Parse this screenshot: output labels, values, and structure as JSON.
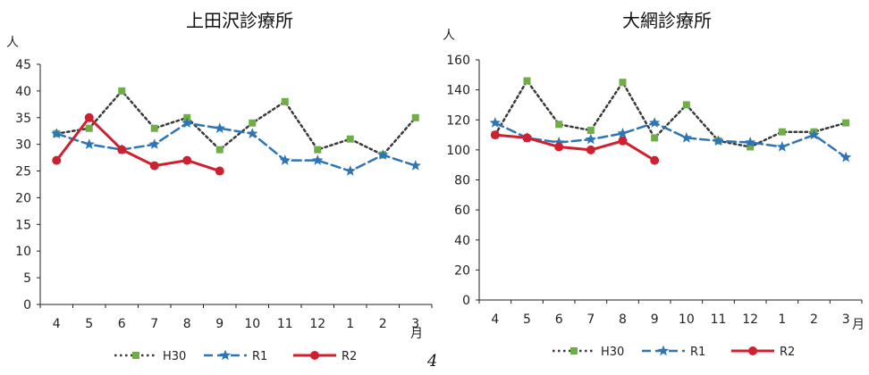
{
  "page_number": "4",
  "chart_data": [
    {
      "type": "line",
      "title": "上田沢診療所",
      "ylabel": "人",
      "xlabel": "月",
      "categories": [
        "4",
        "5",
        "6",
        "7",
        "8",
        "9",
        "10",
        "11",
        "12",
        "1",
        "2",
        "3"
      ],
      "ylim": [
        0,
        45
      ],
      "yticks": [
        0,
        5,
        10,
        15,
        20,
        25,
        30,
        35,
        40,
        45
      ],
      "grid": false,
      "legend": "bottom",
      "series": [
        {
          "name": "H30",
          "style": "dotted",
          "color": "#3a3a3a",
          "marker": "square",
          "marker_color": "#70ad47",
          "values": [
            32,
            33,
            40,
            33,
            35,
            29,
            34,
            38,
            29,
            31,
            28,
            35
          ]
        },
        {
          "name": "R1",
          "style": "dashed",
          "color": "#2e75b6",
          "marker": "star",
          "marker_color": "#2e75b6",
          "values": [
            32,
            30,
            29,
            30,
            34,
            33,
            32,
            27,
            27,
            25,
            28,
            26
          ]
        },
        {
          "name": "R2",
          "style": "solid",
          "color": "#d02030",
          "marker": "circle",
          "marker_color": "#d02030",
          "values": [
            27,
            35,
            29,
            26,
            27,
            25,
            null,
            null,
            null,
            null,
            null,
            null
          ]
        }
      ]
    },
    {
      "type": "line",
      "title": "大網診療所",
      "ylabel": "人",
      "xlabel": "月",
      "categories": [
        "4",
        "5",
        "6",
        "7",
        "8",
        "9",
        "10",
        "11",
        "12",
        "1",
        "2",
        "3"
      ],
      "ylim": [
        0,
        160
      ],
      "yticks": [
        0,
        20,
        40,
        60,
        80,
        100,
        120,
        140,
        160
      ],
      "grid": false,
      "legend": "bottom",
      "series": [
        {
          "name": "H30",
          "style": "dotted",
          "color": "#3a3a3a",
          "marker": "square",
          "marker_color": "#70ad47",
          "values": [
            110,
            146,
            117,
            113,
            145,
            108,
            130,
            106,
            102,
            112,
            112,
            118
          ]
        },
        {
          "name": "R1",
          "style": "dashed",
          "color": "#2e75b6",
          "marker": "star",
          "marker_color": "#2e75b6",
          "values": [
            118,
            108,
            105,
            107,
            111,
            118,
            108,
            106,
            105,
            102,
            110,
            95
          ]
        },
        {
          "name": "R2",
          "style": "solid",
          "color": "#d02030",
          "marker": "circle",
          "marker_color": "#d02030",
          "values": [
            110,
            108,
            102,
            100,
            106,
            93,
            null,
            null,
            null,
            null,
            null,
            null
          ]
        }
      ]
    }
  ]
}
